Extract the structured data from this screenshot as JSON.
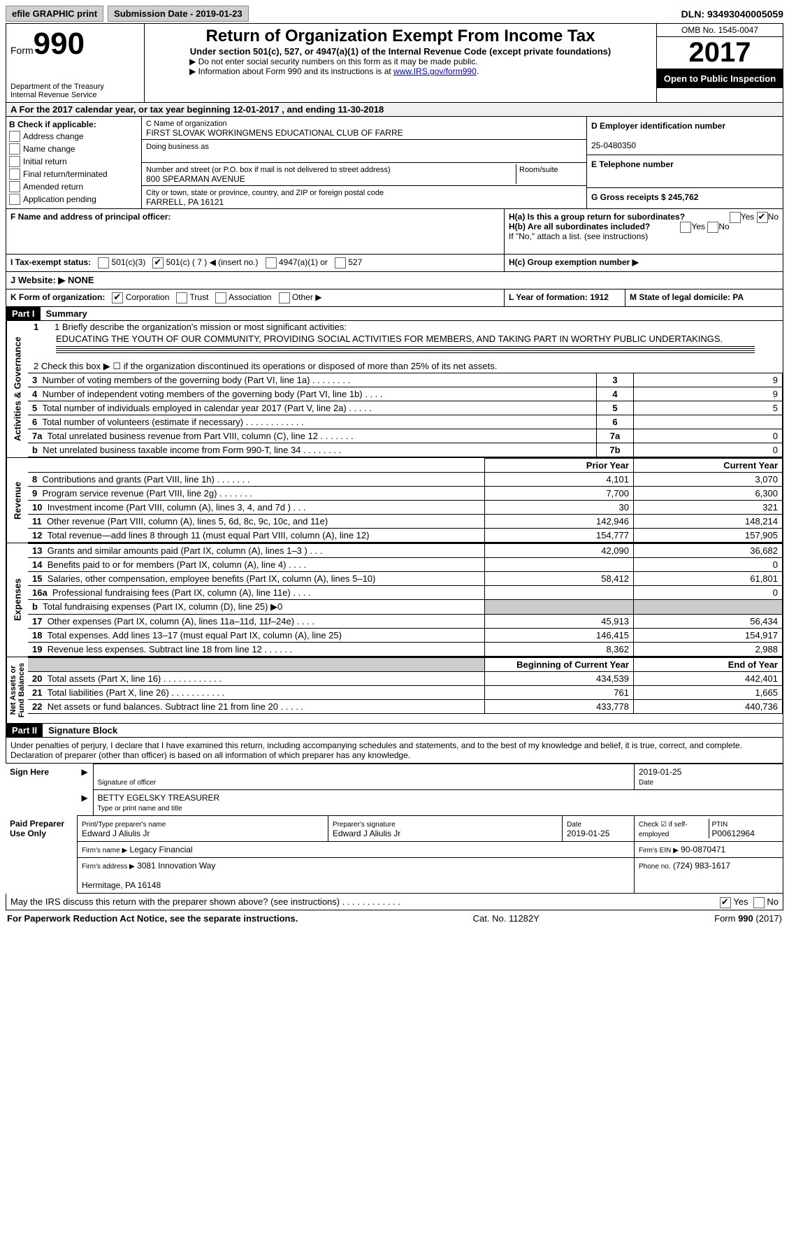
{
  "topbar": {
    "efile": "efile GRAPHIC print",
    "submission": "Submission Date - 2019-01-23",
    "dln": "DLN: 93493040005059"
  },
  "header": {
    "form_prefix": "Form",
    "form_num": "990",
    "dept": "Department of the Treasury\nInternal Revenue Service",
    "title": "Return of Organization Exempt From Income Tax",
    "subtitle": "Under section 501(c), 527, or 4947(a)(1) of the Internal Revenue Code (except private foundations)",
    "instr1": "▶ Do not enter social security numbers on this form as it may be made public.",
    "instr2": "▶ Information about Form 990 and its instructions is at ",
    "instr_link": "www.IRS.gov/form990",
    "omb": "OMB No. 1545-0047",
    "year": "2017",
    "open": "Open to Public Inspection"
  },
  "rowA": "A  For the 2017 calendar year, or tax year beginning 12-01-2017   , and ending 11-30-2018",
  "B": {
    "label": "B Check if applicable:",
    "items": [
      "Address change",
      "Name change",
      "Initial return",
      "Final return/terminated",
      "Amended return",
      "Application pending"
    ]
  },
  "C": {
    "name_label": "C Name of organization",
    "name": "FIRST SLOVAK WORKINGMENS EDUCATIONAL CLUB OF FARRE",
    "dba_label": "Doing business as",
    "addr_label": "Number and street (or P.O. box if mail is not delivered to street address)",
    "room_label": "Room/suite",
    "addr": "800 SPEARMAN AVENUE",
    "city_label": "City or town, state or province, country, and ZIP or foreign postal code",
    "city": "FARRELL, PA  16121"
  },
  "D": {
    "ein_label": "D Employer identification number",
    "ein": "25-0480350",
    "tel_label": "E Telephone number",
    "gross_label": "G Gross receipts $ 245,762"
  },
  "F": {
    "label": "F  Name and address of principal officer:"
  },
  "H": {
    "a": "H(a)  Is this a group return for subordinates?",
    "b": "H(b)  Are all subordinates included?",
    "b_note": "If \"No,\" attach a list. (see instructions)",
    "c": "H(c)  Group exemption number ▶"
  },
  "I": {
    "label": "I  Tax-exempt status:",
    "opts": [
      "501(c)(3)",
      "501(c) ( 7 ) ◀ (insert no.)",
      "4947(a)(1) or",
      "527"
    ]
  },
  "J": "J  Website: ▶  NONE",
  "K": {
    "label": "K  Form of organization:",
    "opts": [
      "Corporation",
      "Trust",
      "Association",
      "Other ▶"
    ]
  },
  "L": "L Year of formation: 1912",
  "M": "M State of legal domicile: PA",
  "part1": {
    "header": "Part I",
    "title": "Summary",
    "line1_label": "1  Briefly describe the organization's mission or most significant activities:",
    "line1_text": "EDUCATING THE YOUTH OF OUR COMMUNITY, PROVIDING SOCIAL ACTIVITIES FOR MEMBERS, AND TAKING PART IN WORTHY PUBLIC UNDERTAKINGS.",
    "line2": "2  Check this box ▶ ☐  if the organization discontinued its operations or disposed of more than 25% of its net assets.",
    "gov_rows": [
      {
        "n": "3",
        "t": "Number of voting members of the governing body (Part VI, line 1a)  .   .   .   .   .   .   .   .",
        "box": "3",
        "v": "9"
      },
      {
        "n": "4",
        "t": "Number of independent voting members of the governing body (Part VI, line 1b)  .   .   .   .",
        "box": "4",
        "v": "9"
      },
      {
        "n": "5",
        "t": "Total number of individuals employed in calendar year 2017 (Part V, line 2a)  .   .   .   .   .",
        "box": "5",
        "v": "5"
      },
      {
        "n": "6",
        "t": "Total number of volunteers (estimate if necessary)  .   .   .   .   .   .   .   .   .   .   .   .",
        "box": "6",
        "v": ""
      },
      {
        "n": "7a",
        "t": "Total unrelated business revenue from Part VIII, column (C), line 12  .   .   .   .   .   .   .",
        "box": "7a",
        "v": "0"
      },
      {
        "n": "b",
        "t": "Net unrelated business taxable income from Form 990-T, line 34  .   .   .   .   .   .   .   .",
        "box": "7b",
        "v": "0"
      }
    ],
    "col_prior": "Prior Year",
    "col_current": "Current Year",
    "rev_rows": [
      {
        "n": "8",
        "t": "Contributions and grants (Part VIII, line 1h)  .   .   .   .   .   .   .",
        "p": "4,101",
        "c": "3,070"
      },
      {
        "n": "9",
        "t": "Program service revenue (Part VIII, line 2g)  .   .   .   .   .   .   .",
        "p": "7,700",
        "c": "6,300"
      },
      {
        "n": "10",
        "t": "Investment income (Part VIII, column (A), lines 3, 4, and 7d )   .   .   .",
        "p": "30",
        "c": "321"
      },
      {
        "n": "11",
        "t": "Other revenue (Part VIII, column (A), lines 5, 6d, 8c, 9c, 10c, and 11e)",
        "p": "142,946",
        "c": "148,214"
      },
      {
        "n": "12",
        "t": "Total revenue—add lines 8 through 11 (must equal Part VIII, column (A), line 12)",
        "p": "154,777",
        "c": "157,905"
      }
    ],
    "exp_rows": [
      {
        "n": "13",
        "t": "Grants and similar amounts paid (Part IX, column (A), lines 1–3 )  .   .   .",
        "p": "42,090",
        "c": "36,682"
      },
      {
        "n": "14",
        "t": "Benefits paid to or for members (Part IX, column (A), line 4)  .   .   .   .",
        "p": "",
        "c": "0"
      },
      {
        "n": "15",
        "t": "Salaries, other compensation, employee benefits (Part IX, column (A), lines 5–10)",
        "p": "58,412",
        "c": "61,801"
      },
      {
        "n": "16a",
        "t": "Professional fundraising fees (Part IX, column (A), line 11e)  .   .   .   .",
        "p": "",
        "c": "0"
      },
      {
        "n": "b",
        "t": "Total fundraising expenses (Part IX, column (D), line 25) ▶0",
        "gray": true
      },
      {
        "n": "17",
        "t": "Other expenses (Part IX, column (A), lines 11a–11d, 11f–24e)  .   .   .   .",
        "p": "45,913",
        "c": "56,434"
      },
      {
        "n": "18",
        "t": "Total expenses. Add lines 13–17 (must equal Part IX, column (A), line 25)",
        "p": "146,415",
        "c": "154,917"
      },
      {
        "n": "19",
        "t": "Revenue less expenses. Subtract line 18 from line 12 .   .   .   .   .   .",
        "p": "8,362",
        "c": "2,988"
      }
    ],
    "col_begin": "Beginning of Current Year",
    "col_end": "End of Year",
    "net_rows": [
      {
        "n": "20",
        "t": "Total assets (Part X, line 16)  .   .   .   .   .   .   .   .   .   .   .   .",
        "p": "434,539",
        "c": "442,401"
      },
      {
        "n": "21",
        "t": "Total liabilities (Part X, line 26)  .   .   .   .   .   .   .   .   .   .   .",
        "p": "761",
        "c": "1,665"
      },
      {
        "n": "22",
        "t": "Net assets or fund balances. Subtract line 21 from line 20  .   .   .   .   .",
        "p": "433,778",
        "c": "440,736"
      }
    ],
    "vtab_gov": "Activities & Governance",
    "vtab_rev": "Revenue",
    "vtab_exp": "Expenses",
    "vtab_net": "Net Assets or\nFund Balances"
  },
  "part2": {
    "header": "Part II",
    "title": "Signature Block",
    "penalty": "Under penalties of perjury, I declare that I have examined this return, including accompanying schedules and statements, and to the best of my knowledge and belief, it is true, correct, and complete. Declaration of preparer (other than officer) is based on all information of which preparer has any knowledge.",
    "sign_here": "Sign Here",
    "sig_officer": "Signature of officer",
    "sig_date": "2019-01-25",
    "date_label": "Date",
    "officer_name": "BETTY EGELSKY TREASURER",
    "type_name": "Type or print name and title",
    "paid": "Paid Preparer Use Only",
    "prep_name_label": "Print/Type preparer's name",
    "prep_name": "Edward J Aliulis Jr",
    "prep_sig_label": "Preparer's signature",
    "prep_sig": "Edward J Aliulis Jr",
    "prep_date": "2019-01-25",
    "self_emp": "Check ☑ if self-employed",
    "ptin_label": "PTIN",
    "ptin": "P00612964",
    "firm_name_label": "Firm's name      ▶",
    "firm_name": "Legacy Financial",
    "firm_ein_label": "Firm's EIN ▶",
    "firm_ein": "90-0870471",
    "firm_addr_label": "Firm's address ▶",
    "firm_addr": "3081 Innovation Way\n\nHermitage, PA  16148",
    "phone_label": "Phone no.",
    "phone": "(724) 983-1617",
    "discuss": "May the IRS discuss this return with the preparer shown above? (see instructions)  .   .   .   .   .   .   .   .   .   .   .   .",
    "yes": "Yes",
    "no": "No"
  },
  "footer": {
    "left": "For Paperwork Reduction Act Notice, see the separate instructions.",
    "center": "Cat. No. 11282Y",
    "right": "Form 990 (2017)"
  }
}
